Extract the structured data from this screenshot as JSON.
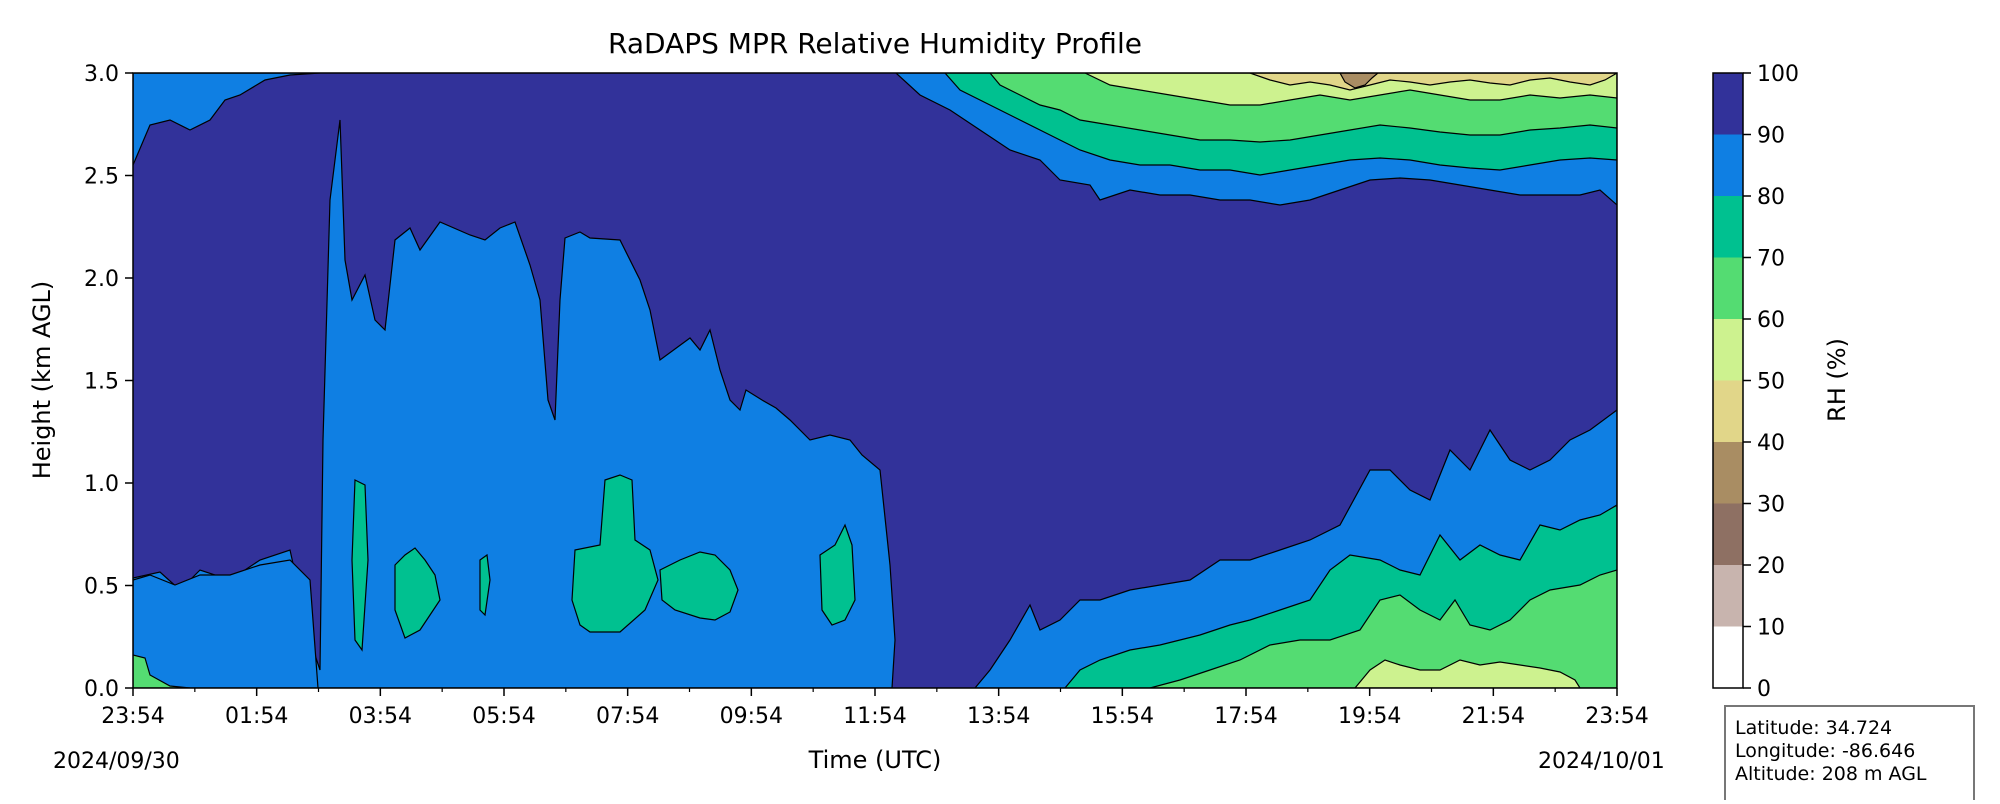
{
  "chart_data": {
    "type": "heatmap",
    "subtype": "filled-contour",
    "title": "RaDAPS MPR Relative Humidity Profile",
    "xlabel": "Time (UTC)",
    "ylabel": "Height (km AGL)",
    "x_ticks": [
      "23:54",
      "01:54",
      "03:54",
      "05:54",
      "07:54",
      "09:54",
      "11:54",
      "13:54",
      "15:54",
      "17:54",
      "19:54",
      "21:54",
      "23:54"
    ],
    "x_date_start": "2024/09/30",
    "x_date_end": "2024/10/01",
    "y_ticks": [
      "0.0",
      "0.5",
      "1.0",
      "1.5",
      "2.0",
      "2.5",
      "3.0"
    ],
    "ylim": [
      0.0,
      3.0
    ],
    "xlim_hours": [
      0,
      24
    ],
    "colorbar": {
      "label": "RH (%)",
      "ticks": [
        "0",
        "10",
        "20",
        "30",
        "40",
        "50",
        "60",
        "70",
        "80",
        "90",
        "100"
      ],
      "levels": [
        0,
        10,
        20,
        30,
        40,
        50,
        60,
        70,
        80,
        90,
        100
      ],
      "colors": [
        "#ffffff",
        "#c8b4ae",
        "#8e7063",
        "#a98d63",
        "#e1d689",
        "#cdf28f",
        "#54dc72",
        "#00c190",
        "#0f7fe3",
        "#32329a"
      ]
    },
    "regions": [
      {
        "rh_range": [
          90,
          100
        ],
        "description": "dominant layer above ~0.5 km before 02:30 UTC and across 12:00–24:00 mid-levels"
      },
      {
        "rh_range": [
          80,
          90
        ],
        "description": "broad layer 0–2.3 km from ~02:30 to ~12:00 UTC; thin band near surface and top"
      },
      {
        "rh_range": [
          70,
          80
        ],
        "description": "embedded cells near 0.3–0.8 km between 03:00 and 11:00 UTC; lower levels after 15:00"
      },
      {
        "rh_range": [
          60,
          70
        ],
        "description": "boundary layer after ~15:00 UTC and upper levels 2.5–3.0 km after 16:00"
      },
      {
        "rh_range": [
          50,
          60
        ],
        "description": "near surface ~20:00–23:30 UTC and upper levels after 17:00"
      },
      {
        "rh_range": [
          40,
          50
        ],
        "description": "top of domain ~18:00–23:30 UTC"
      },
      {
        "rh_range": [
          30,
          40
        ],
        "description": "small patch near 3.0 km around 19:30 UTC"
      }
    ],
    "info": {
      "latitude": "Latitude: 34.724",
      "longitude": "Longitude: -86.646",
      "altitude": "Altitude: 208 m AGL"
    }
  }
}
